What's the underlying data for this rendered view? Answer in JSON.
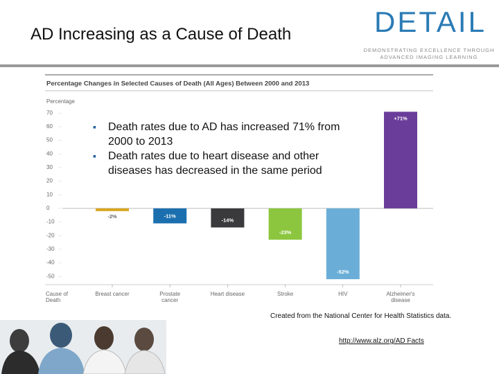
{
  "header": {
    "title": "AD Increasing as a Cause of Death",
    "logo": "DETAIL",
    "tagline": [
      "DEMONSTRATING EXCELLENCE THROUGH",
      "ADVANCED IMAGING LEARNING"
    ]
  },
  "bullets": [
    "Death rates due to AD has increased 71% from 2000 to 2013",
    "Death rates due to heart disease and other diseases has decreased in the same period"
  ],
  "chart_data": {
    "type": "bar",
    "title": "Percentage Changes in Selected Causes of Death (All Ages) Between 2000 and 2013",
    "y_label": "Percentage",
    "x_label": "Cause of Death",
    "categories": [
      "Breast cancer",
      "Prostate cancer",
      "Heart disease",
      "Stroke",
      "HIV",
      "Alzheimer's disease"
    ],
    "values": [
      -2,
      -11,
      -14,
      -23,
      -52,
      71
    ],
    "value_labels": [
      "-2%",
      "-11%",
      "-14%",
      "-23%",
      "-52%",
      "+71%"
    ],
    "colors": [
      "#d9a520",
      "#1b6fae",
      "#3a3a3c",
      "#8cc63f",
      "#6aaed8",
      "#6a3d9a"
    ],
    "ylim": [
      -55,
      75
    ],
    "yticks": [
      70,
      60,
      50,
      40,
      30,
      20,
      10,
      0,
      -10,
      -20,
      -30,
      -40,
      -50
    ],
    "grid": false
  },
  "footer": {
    "note": "Created from the National Center for Health Statistics data.",
    "link": "http://www.alz.org/AD Facts"
  }
}
